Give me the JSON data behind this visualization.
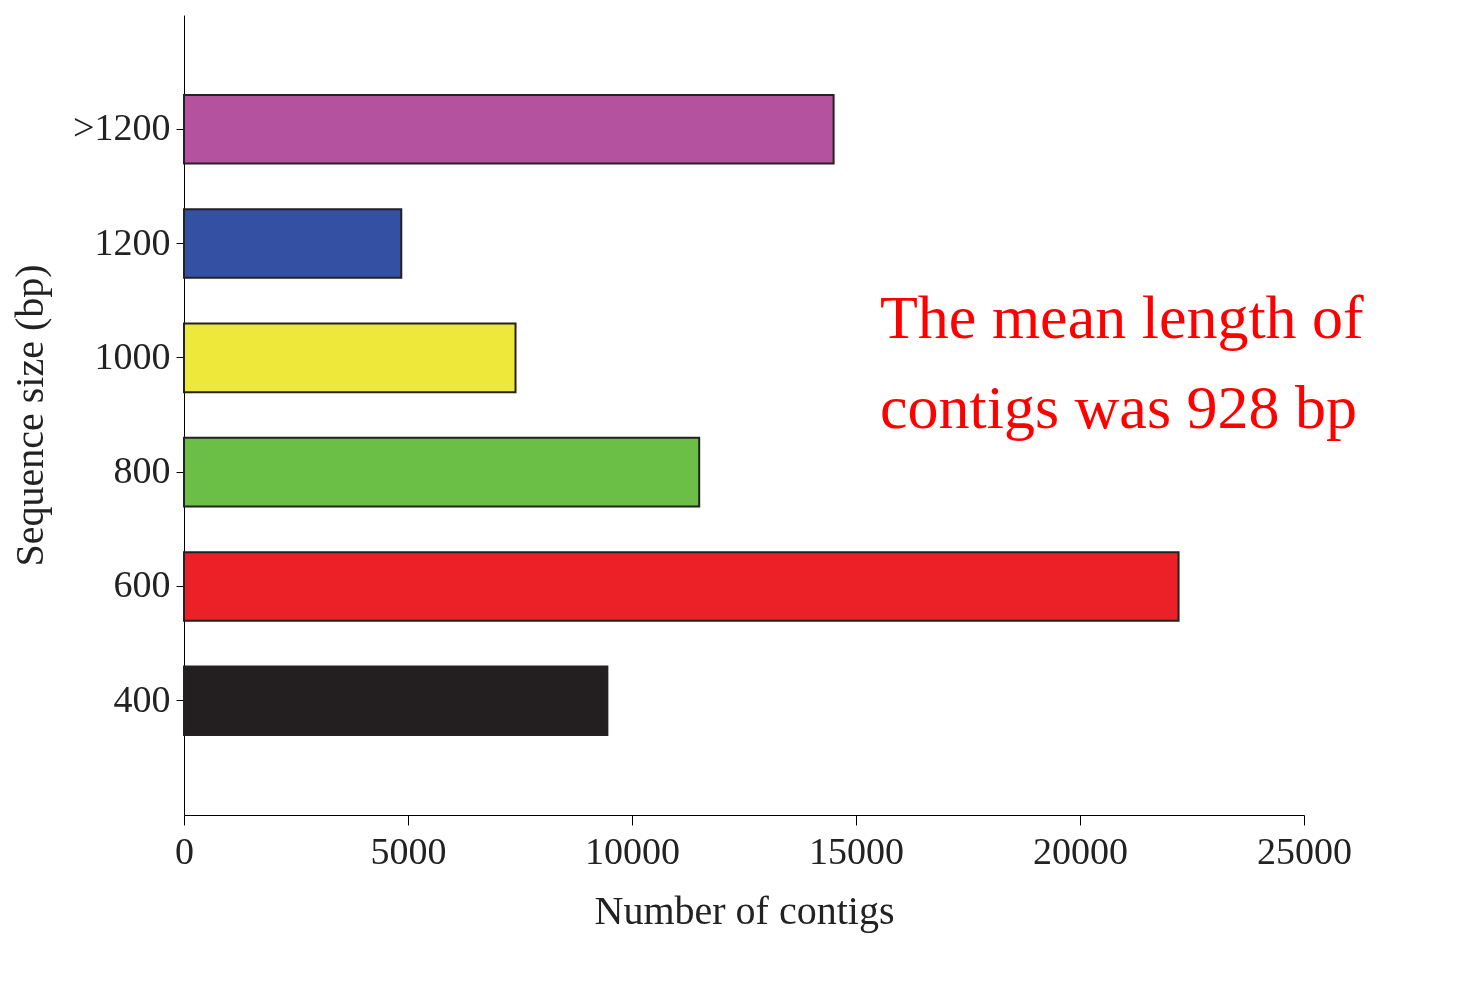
{
  "chart_data": {
    "type": "bar",
    "orientation": "horizontal",
    "categories": [
      ">1200",
      "1200",
      "1000",
      "800",
      "600",
      "400"
    ],
    "values": [
      14500,
      4850,
      7400,
      11500,
      22200,
      9450
    ],
    "colors": [
      "#b5529f",
      "#3350a3",
      "#eee83a",
      "#6bbf47",
      "#ec2027",
      "#231f20"
    ],
    "xlabel": "Number of contigs",
    "ylabel": "Sequence size (bp)",
    "xlim": [
      0,
      25000
    ],
    "xticks": [
      0,
      5000,
      10000,
      15000,
      20000,
      25000
    ],
    "annotations": [
      "The mean length of contigs was 928 bp"
    ],
    "grid": false,
    "legend": false
  }
}
